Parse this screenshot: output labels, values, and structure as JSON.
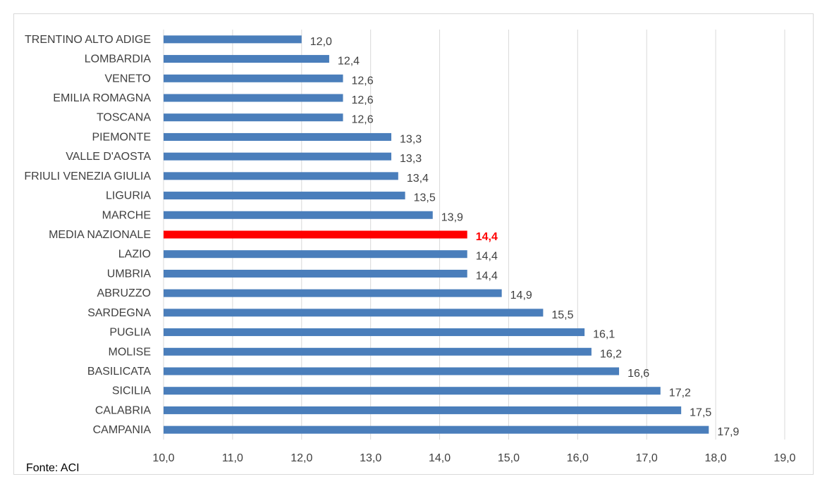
{
  "chart_data": {
    "type": "bar",
    "orientation": "horizontal",
    "categories": [
      "TRENTINO ALTO ADIGE",
      "LOMBARDIA",
      "VENETO",
      "EMILIA ROMAGNA",
      "TOSCANA",
      "PIEMONTE",
      "VALLE D'AOSTA",
      "FRIULI VENEZIA GIULIA",
      "LIGURIA",
      "MARCHE",
      "MEDIA NAZIONALE",
      "LAZIO",
      "UMBRIA",
      "ABRUZZO",
      "SARDEGNA",
      "PUGLIA",
      "MOLISE",
      "BASILICATA",
      "SICILIA",
      "CALABRIA",
      "CAMPANIA"
    ],
    "values": [
      12.0,
      12.4,
      12.6,
      12.6,
      12.6,
      13.3,
      13.3,
      13.4,
      13.5,
      13.9,
      14.4,
      14.4,
      14.4,
      14.9,
      15.5,
      16.1,
      16.2,
      16.6,
      17.2,
      17.5,
      17.9
    ],
    "value_labels": [
      "12,0",
      "12,4",
      "12,6",
      "12,6",
      "12,6",
      "13,3",
      "13,3",
      "13,4",
      "13,5",
      "13,9",
      "14,4",
      "14,4",
      "14,4",
      "14,9",
      "15,5",
      "16,1",
      "16,2",
      "16,6",
      "17,2",
      "17,5",
      "17,9"
    ],
    "highlight_category": "MEDIA NAZIONALE",
    "xlim": [
      10,
      19
    ],
    "xticks": [
      "10,0",
      "11,0",
      "12,0",
      "13,0",
      "14,0",
      "15,0",
      "16,0",
      "17,0",
      "18,0",
      "19,0"
    ],
    "grid": "vertical",
    "colors": {
      "bar": "#4a7ebb",
      "highlight": "#ff0000",
      "grid": "#d9d9d9",
      "text": "#404040"
    },
    "title": "",
    "xlabel": "",
    "ylabel": ""
  },
  "source": "Fonte: ACI"
}
